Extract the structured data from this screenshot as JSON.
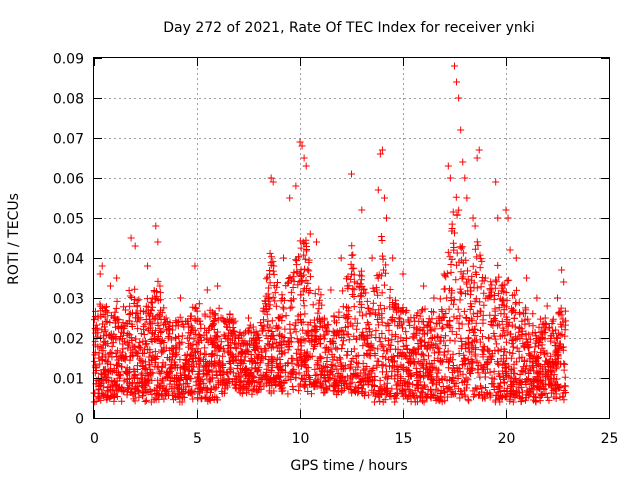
{
  "chart_data": {
    "type": "scatter",
    "title": "Day 272 of 2021, Rate Of TEC Index for receiver ynki",
    "xlabel": "GPS time / hours",
    "ylabel": "ROTI / TECUs",
    "xlim": [
      0,
      25
    ],
    "ylim": [
      0,
      0.09
    ],
    "xticks": [
      0,
      5,
      10,
      15,
      20,
      25
    ],
    "xtick_labels": [
      "0",
      "5",
      "10",
      "15",
      "20",
      "25"
    ],
    "yticks": [
      0,
      0.01,
      0.02,
      0.03,
      0.04,
      0.05,
      0.06,
      0.07,
      0.08,
      0.09
    ],
    "ytick_labels": [
      "0",
      "0.01",
      "0.02",
      "0.03",
      "0.04",
      "0.05",
      "0.06",
      "0.07",
      "0.08",
      "0.09"
    ],
    "grid": true,
    "marker": "+",
    "color": "#ff0000",
    "x_data_range": [
      0,
      22.9
    ],
    "series": [
      {
        "name": "ROTI",
        "points": [
          [
            0.1,
            0.022
          ],
          [
            0.2,
            0.025
          ],
          [
            0.3,
            0.036
          ],
          [
            0.4,
            0.038
          ],
          [
            0.5,
            0.012
          ],
          [
            0.8,
            0.033
          ],
          [
            1.1,
            0.035
          ],
          [
            1.8,
            0.045
          ],
          [
            2.0,
            0.043
          ],
          [
            2.6,
            0.038
          ],
          [
            3.0,
            0.048
          ],
          [
            3.1,
            0.044
          ],
          [
            3.2,
            0.033
          ],
          [
            3.5,
            0.025
          ],
          [
            4.2,
            0.03
          ],
          [
            4.9,
            0.038
          ],
          [
            5.5,
            0.032
          ],
          [
            6.0,
            0.033
          ],
          [
            6.6,
            0.026
          ],
          [
            7.5,
            0.025
          ],
          [
            8.5,
            0.03
          ],
          [
            8.6,
            0.06
          ],
          [
            8.7,
            0.059
          ],
          [
            9.2,
            0.04
          ],
          [
            9.5,
            0.055
          ],
          [
            9.8,
            0.058
          ],
          [
            10.0,
            0.069
          ],
          [
            10.1,
            0.068
          ],
          [
            10.2,
            0.065
          ],
          [
            10.3,
            0.063
          ],
          [
            10.5,
            0.046
          ],
          [
            10.8,
            0.044
          ],
          [
            11.5,
            0.032
          ],
          [
            12.5,
            0.061
          ],
          [
            12.0,
            0.04
          ],
          [
            13.0,
            0.052
          ],
          [
            13.5,
            0.04
          ],
          [
            13.8,
            0.057
          ],
          [
            13.9,
            0.066
          ],
          [
            14.0,
            0.067
          ],
          [
            14.1,
            0.055
          ],
          [
            14.2,
            0.05
          ],
          [
            14.5,
            0.04
          ],
          [
            15.0,
            0.036
          ],
          [
            16.0,
            0.033
          ],
          [
            16.5,
            0.03
          ],
          [
            17.0,
            0.036
          ],
          [
            17.2,
            0.063
          ],
          [
            17.3,
            0.06
          ],
          [
            17.5,
            0.088
          ],
          [
            17.6,
            0.084
          ],
          [
            17.7,
            0.08
          ],
          [
            17.8,
            0.072
          ],
          [
            17.9,
            0.064
          ],
          [
            18.0,
            0.06
          ],
          [
            18.1,
            0.055
          ],
          [
            18.4,
            0.05
          ],
          [
            18.5,
            0.048
          ],
          [
            18.6,
            0.065
          ],
          [
            18.7,
            0.067
          ],
          [
            19.0,
            0.035
          ],
          [
            19.5,
            0.059
          ],
          [
            19.6,
            0.05
          ],
          [
            20.0,
            0.052
          ],
          [
            20.1,
            0.05
          ],
          [
            20.2,
            0.042
          ],
          [
            20.5,
            0.04
          ],
          [
            21.0,
            0.035
          ],
          [
            21.5,
            0.03
          ],
          [
            22.0,
            0.028
          ],
          [
            22.5,
            0.03
          ],
          [
            22.7,
            0.037
          ],
          [
            22.8,
            0.034
          ]
        ]
      }
    ]
  }
}
